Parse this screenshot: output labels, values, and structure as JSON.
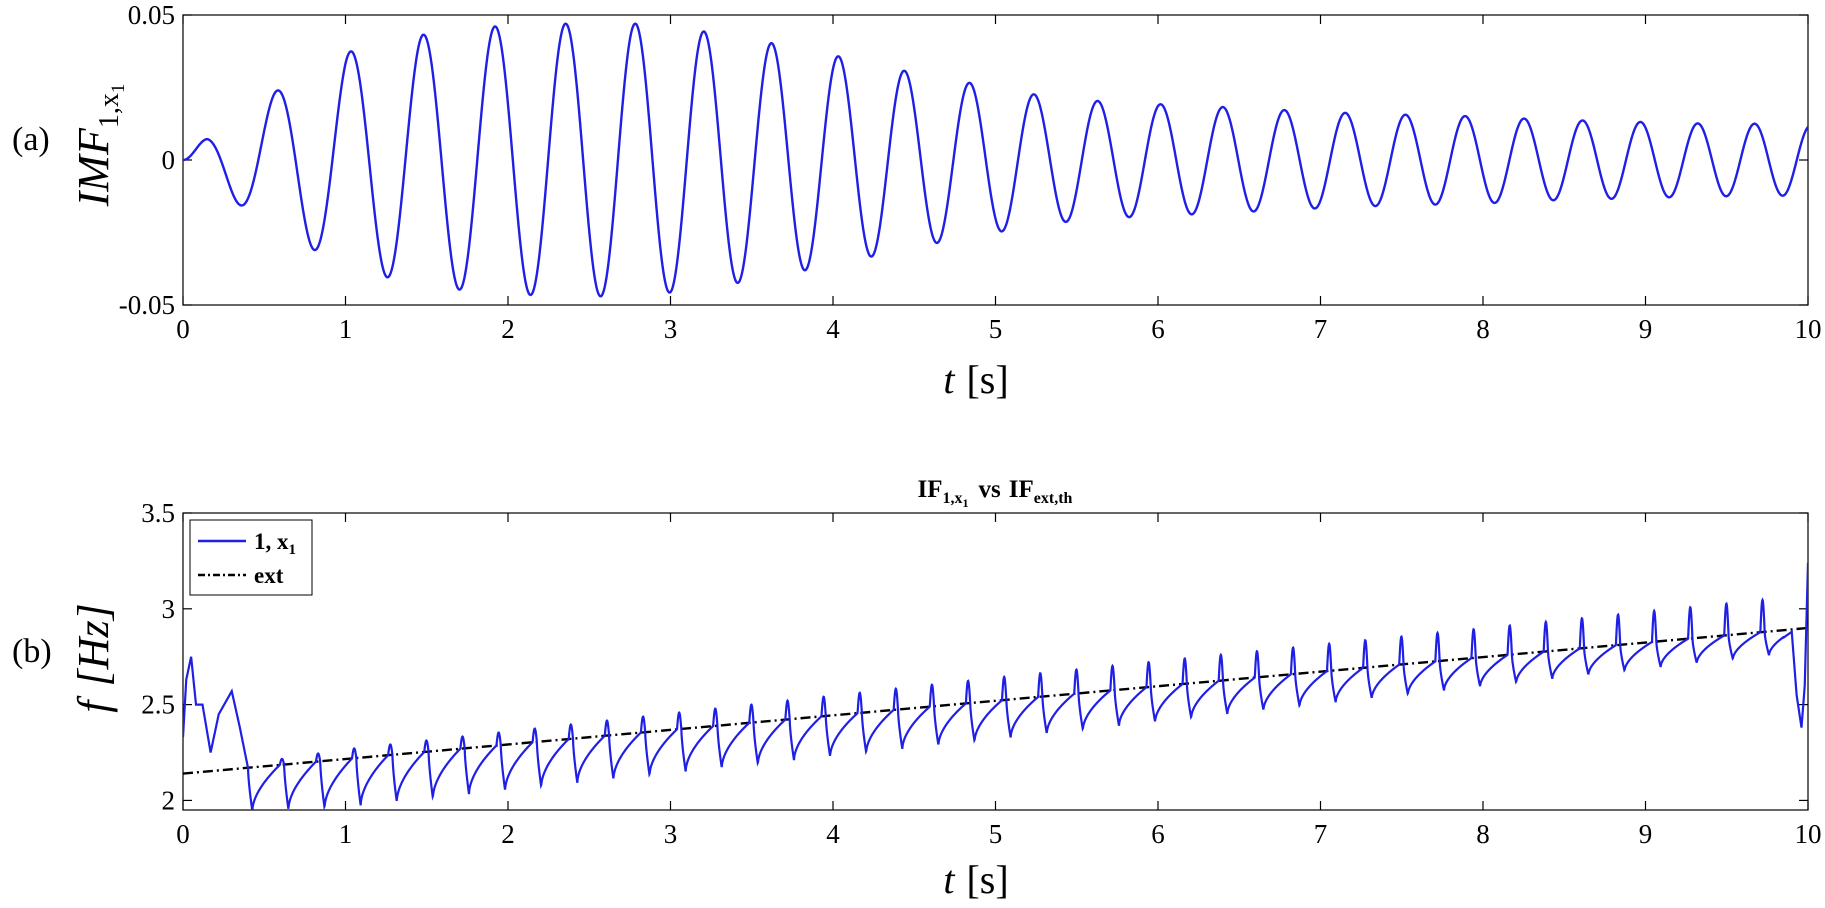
{
  "chart_data": [
    {
      "type": "line",
      "panel_label": "(a)",
      "title": "",
      "xlabel_var": "t",
      "xlabel_unit": "[s]",
      "ylabel_main": "IMF",
      "ylabel_sub": "1,x",
      "ylabel_subsub": "1",
      "xlim": [
        0,
        10
      ],
      "ylim": [
        -0.05,
        0.05
      ],
      "xticks": [
        0,
        1,
        2,
        3,
        4,
        5,
        6,
        7,
        8,
        9,
        10
      ],
      "xtick_labels": [
        "0",
        "1",
        "2",
        "3",
        "4",
        "5",
        "6",
        "7",
        "8",
        "9",
        "10"
      ],
      "yticks": [
        -0.05,
        0,
        0.05
      ],
      "ytick_labels": [
        "-0.05",
        "0",
        "0.05"
      ],
      "series": [
        {
          "color": "#1f1fe6",
          "description_envelope": {
            "t": [
              0,
              0.15,
              0.55,
              1.0,
              1.45,
              1.9,
              2.35,
              2.8,
              3.25,
              3.65,
              4.1,
              4.5,
              4.9,
              5.3,
              5.7,
              6.1,
              6.5,
              6.85,
              7.25,
              7.6,
              8.0,
              8.35,
              8.7,
              9.05,
              9.4,
              9.75,
              10.0
            ],
            "amplitude": [
              0.0,
              0.008,
              0.023,
              0.037,
              0.043,
              0.046,
              0.047,
              0.047,
              0.044,
              0.04,
              0.035,
              0.03,
              0.026,
              0.022,
              0.02,
              0.019,
              0.018,
              0.017,
              0.016,
              0.0155,
              0.015,
              0.014,
              0.0135,
              0.013,
              0.0125,
              0.0125,
              0.012
            ]
          },
          "frequency_start_hz": 2.14,
          "frequency_end_hz": 2.9
        }
      ]
    },
    {
      "type": "line",
      "panel_label": "(b)",
      "title_main_1": "IF",
      "title_sub_1": "1,x",
      "title_subsub_1": "1",
      "title_vs": "vs",
      "title_main_2": "IF",
      "title_sub_2": "ext,th",
      "xlabel_var": "t",
      "xlabel_unit": "[s]",
      "ylabel_var": "f",
      "ylabel_unit": "[Hz]",
      "xlim": [
        0,
        10
      ],
      "ylim": [
        1.95,
        3.5
      ],
      "xticks": [
        0,
        1,
        2,
        3,
        4,
        5,
        6,
        7,
        8,
        9,
        10
      ],
      "xtick_labels": [
        "0",
        "1",
        "2",
        "3",
        "4",
        "5",
        "6",
        "7",
        "8",
        "9",
        "10"
      ],
      "yticks": [
        2,
        2.5,
        3,
        3.5
      ],
      "ytick_labels": [
        "2",
        "2.5",
        "3",
        "3.5"
      ],
      "legend": {
        "placement": "top-left",
        "entries": [
          {
            "label_main": "1, x",
            "label_sub": "1",
            "color": "#1f1fe6",
            "style": "solid"
          },
          {
            "label_main": "ext",
            "color": "#000000",
            "style": "dash-dot"
          }
        ]
      },
      "series": [
        {
          "name": "1, x1",
          "color": "#1f1fe6",
          "oscillation_frequency_hz": 4.5,
          "center_line": {
            "x": [
              0,
              10
            ],
            "y": [
              2.14,
              2.9
            ]
          },
          "amplitude_down": {
            "x": [
              0,
              1,
              5,
              10
            ],
            "y": [
              0.21,
              0.25,
              0.2,
              0.12
            ]
          },
          "amplitude_up": {
            "x": [
              0,
              1,
              5,
              10
            ],
            "y": [
              0.0,
              0.05,
              0.12,
              0.17
            ]
          },
          "start_transient": {
            "x": [
              0,
              0.02,
              0.05,
              0.08,
              0.12,
              0.17,
              0.22,
              0.3,
              0.35,
              0.4
            ],
            "y": [
              2.33,
              2.63,
              2.75,
              2.5,
              2.5,
              2.25,
              2.45,
              2.57,
              2.38,
              2.17
            ]
          },
          "end_transient": {
            "x": [
              9.85,
              9.9,
              9.93,
              9.96,
              9.98,
              10.0
            ],
            "y": [
              2.85,
              2.88,
              2.55,
              2.38,
              2.6,
              3.24
            ]
          }
        },
        {
          "name": "ext",
          "color": "#000000",
          "x": [
            0,
            10
          ],
          "y": [
            2.14,
            2.9
          ]
        }
      ]
    }
  ]
}
